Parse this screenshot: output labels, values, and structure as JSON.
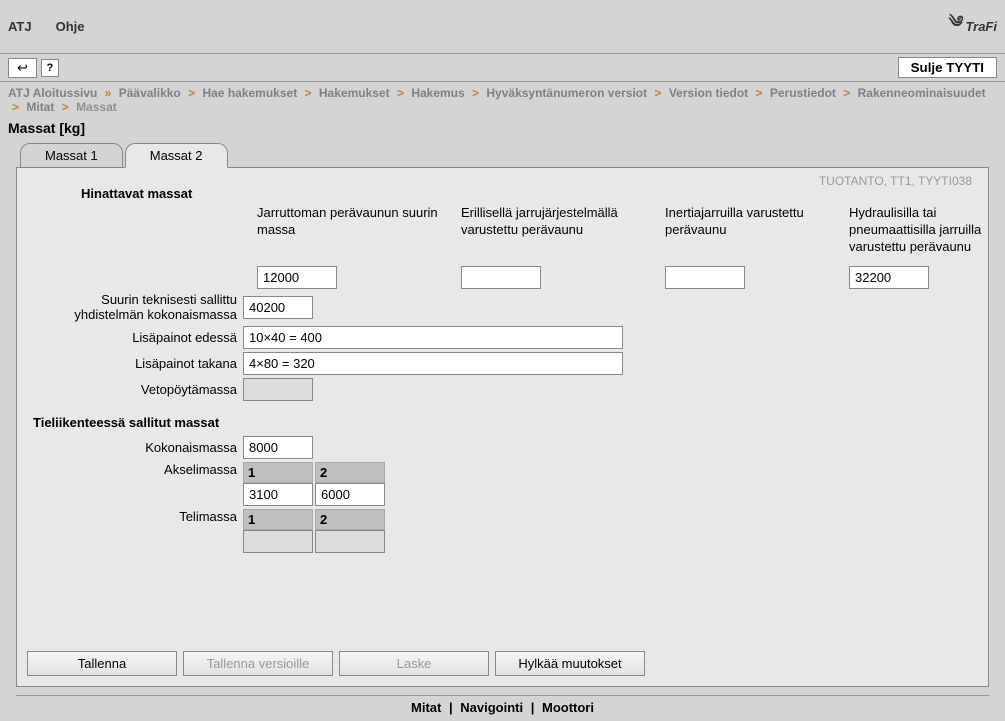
{
  "menubar": {
    "atj": "ATJ",
    "ohje": "Ohje",
    "brand": "TraFi"
  },
  "toolbar": {
    "back_glyph": "↩",
    "help_glyph": "?",
    "close_label": "Sulje TYYTI"
  },
  "breadcrumb": {
    "items": [
      "ATJ Aloitussivu",
      "Päävalikko",
      "Hae hakemukset",
      "Hakemukset",
      "Hakemus",
      "Hyväksyntänumeron versiot",
      "Version tiedot",
      "Perustiedot",
      "Rakenneominaisuudet",
      "Mitat",
      "Massat"
    ],
    "first_sep": "»",
    "sep": ">"
  },
  "page_title": "Massat [kg]",
  "tabs": {
    "tab1": "Massat 1",
    "tab2": "Massat 2"
  },
  "env_label": "TUOTANTO, TT1, TYYTI038",
  "section_towed": "Hinattavat massat",
  "section_road": "Tieliikenteessä sallitut massat",
  "col_labels": {
    "unbraked": "Jarruttoman perävaunun suurin massa",
    "separate": "Erillisellä jarrujärjestelmällä varustettu perävaunu",
    "inertia": "Inertiajarruilla varustettu perävaunu",
    "hydraulic": "Hydraulisilla tai pneumaattisilla jarruilla varustettu perävaunu"
  },
  "row_labels": {
    "combo": "Suurin teknisesti sallittu yhdistelmän kokonaismassa",
    "front": "Lisäpainot edessä",
    "rear": "Lisäpainot takana",
    "fifth": "Vetopöytämassa",
    "total": "Kokonaismassa",
    "axle": "Akselimassa",
    "bogie": "Telimassa"
  },
  "values": {
    "unbraked": "12000",
    "separate": "",
    "inertia": "",
    "hydraulic": "32200",
    "combo": "40200",
    "front": "10×40 = 400",
    "rear": "4×80 = 320",
    "fifth": "",
    "total": "8000",
    "axle_headers": [
      "1",
      "2"
    ],
    "axle_values": [
      "3100",
      "6000"
    ],
    "bogie_headers": [
      "1",
      "2"
    ],
    "bogie_values": [
      "",
      ""
    ]
  },
  "buttons": {
    "save": "Tallenna",
    "save_versions": "Tallenna versioille",
    "calc": "Laske",
    "discard": "Hylkää muutokset"
  },
  "footer": {
    "mitat": "Mitat",
    "navigointi": "Navigointi",
    "moottori": "Moottori"
  },
  "colors": {
    "panel_bg": "#e8e8e8",
    "page_bg": "#d4d4d4",
    "accent_sep": "#c08040"
  }
}
